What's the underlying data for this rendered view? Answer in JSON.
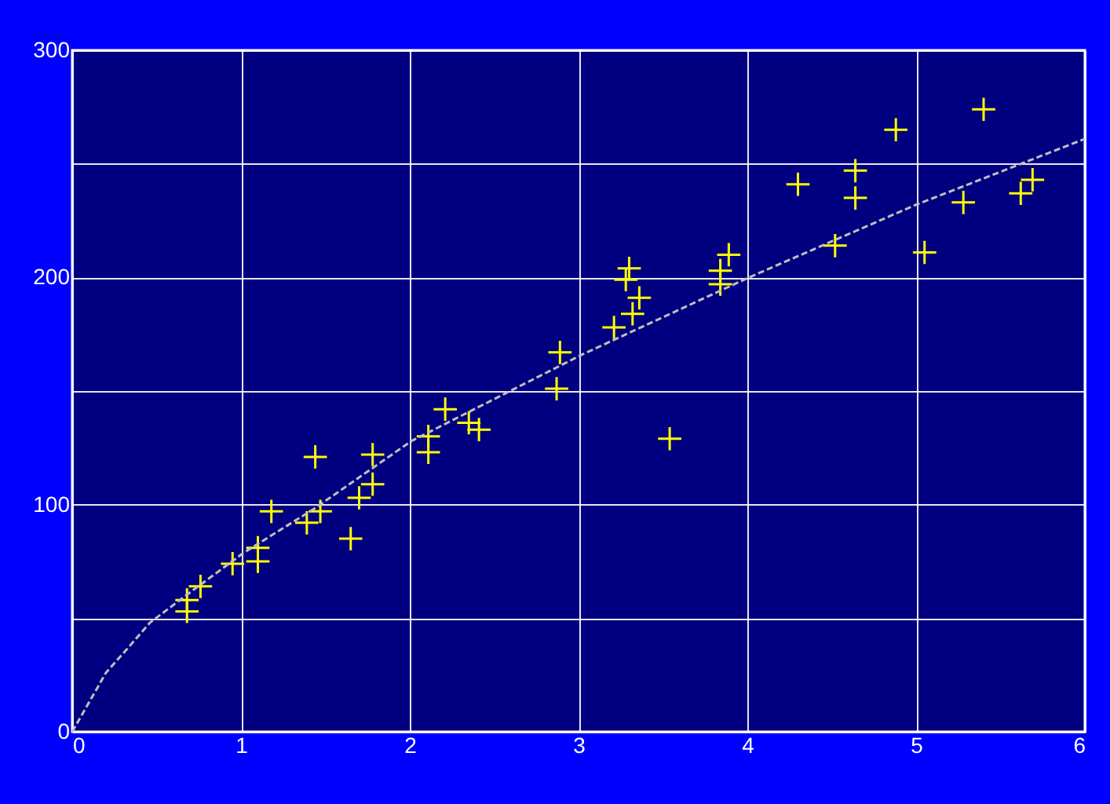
{
  "chart_data": {
    "type": "scatter",
    "xlim": [
      0,
      6
    ],
    "ylim": [
      0,
      300
    ],
    "xticks": [
      0,
      1,
      2,
      3,
      4,
      5,
      6
    ],
    "yticks": [
      0,
      {
        "value": 50,
        "label": null
      },
      100,
      {
        "value": 150,
        "label": null
      },
      200,
      {
        "value": 250,
        "label": null
      },
      300
    ],
    "grid": true,
    "series": [
      {
        "marker": "cross",
        "color": "#ffff00",
        "x": [
          0.68,
          0.68,
          0.76,
          0.95,
          1.1,
          1.1,
          1.18,
          1.39,
          1.44,
          1.47,
          1.65,
          1.7,
          1.78,
          1.78,
          2.11,
          2.11,
          2.21,
          2.35,
          2.41,
          2.87,
          2.89,
          3.21,
          3.28,
          3.3,
          3.32,
          3.36,
          3.54,
          3.84,
          3.84,
          3.89,
          4.3,
          4.52,
          4.64,
          4.64,
          4.88,
          5.05,
          5.28,
          5.4,
          5.62,
          5.69
        ],
        "values": [
          53,
          58,
          64,
          74,
          75,
          81,
          97,
          92,
          121,
          97,
          85,
          103,
          109,
          122,
          123,
          130,
          142,
          136,
          133,
          151,
          167,
          178,
          199,
          204,
          184,
          191,
          129,
          197,
          203,
          210,
          241,
          214,
          235,
          247,
          265,
          211,
          233,
          274,
          237,
          243
        ]
      },
      {
        "type": "line",
        "marker": "none",
        "line_style": "dashed",
        "color": "#c0c0c0",
        "x": [
          0,
          0.2,
          0.32,
          0.46,
          0.71,
          1.02,
          1.43,
          2.01,
          3.02,
          4.01,
          5.0,
          6.0
        ],
        "values": [
          0,
          26,
          36,
          48,
          62,
          79,
          98,
          128,
          166,
          200,
          232,
          261
        ]
      }
    ]
  }
}
